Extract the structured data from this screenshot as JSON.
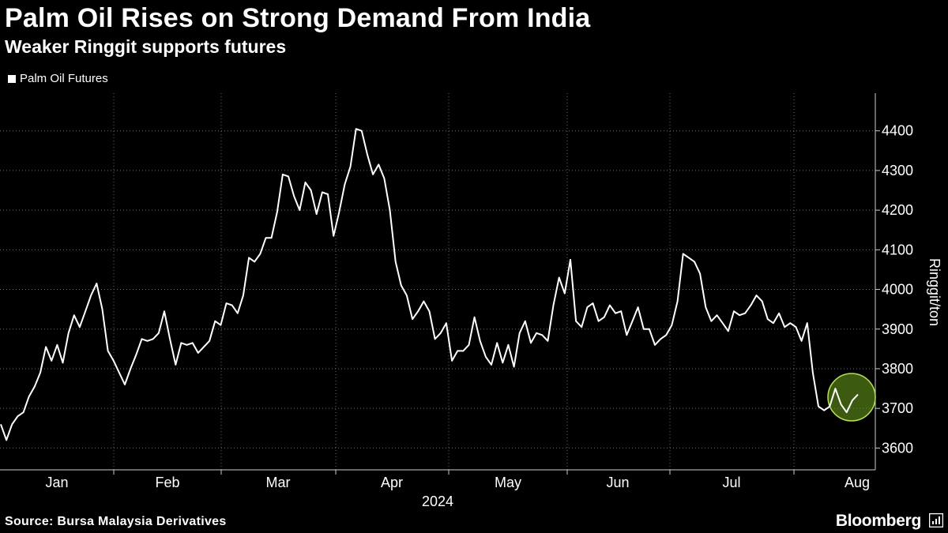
{
  "header": {
    "title": "Palm Oil Rises on Strong Demand From India",
    "subtitle": "Weaker Ringgit supports futures"
  },
  "legend": {
    "label": "Palm Oil Futures",
    "color": "#ffffff"
  },
  "footer": {
    "source": "Source: Bursa Malaysia Derivatives",
    "brand": "Bloomberg"
  },
  "colors": {
    "background": "#000000",
    "line": "#ffffff",
    "grid": "#6b6b6b",
    "highlight": "#6fa51d"
  },
  "chart_data": {
    "type": "line",
    "title": "Palm Oil Rises on Strong Demand From India",
    "subtitle": "Weaker Ringgit supports futures",
    "xlabel": "2024",
    "ylabel": "Ringgit/ton",
    "ylim": [
      3545,
      4495
    ],
    "yticks": [
      3600,
      3700,
      3800,
      3900,
      4000,
      4100,
      4200,
      4300,
      4400
    ],
    "xticks": [
      "Jan",
      "Feb",
      "Mar",
      "Apr",
      "May",
      "Jun",
      "Jul",
      "Aug"
    ],
    "year_label": "2024",
    "grid": true,
    "legend_position": "top-left",
    "highlight_annotation": "circle around latest values (early Aug)",
    "series": [
      {
        "name": "Palm Oil Futures",
        "values": [
          3660,
          3620,
          3660,
          3680,
          3690,
          3730,
          3755,
          3790,
          3855,
          3820,
          3860,
          3815,
          3890,
          3935,
          3905,
          3945,
          3985,
          4015,
          3950,
          3845,
          3820,
          3790,
          3760,
          3800,
          3835,
          3875,
          3870,
          3875,
          3890,
          3945,
          3875,
          3810,
          3865,
          3860,
          3865,
          3840,
          3855,
          3870,
          3920,
          3910,
          3965,
          3960,
          3940,
          3985,
          4080,
          4070,
          4090,
          4130,
          4130,
          4195,
          4290,
          4285,
          4235,
          4200,
          4270,
          4250,
          4190,
          4245,
          4240,
          4135,
          4195,
          4265,
          4310,
          4405,
          4400,
          4340,
          4290,
          4315,
          4280,
          4200,
          4070,
          4010,
          3985,
          3925,
          3945,
          3970,
          3945,
          3875,
          3890,
          3915,
          3820,
          3845,
          3845,
          3860,
          3930,
          3870,
          3830,
          3810,
          3865,
          3815,
          3860,
          3805,
          3890,
          3920,
          3865,
          3890,
          3885,
          3870,
          3960,
          4030,
          3990,
          4075,
          3920,
          3905,
          3955,
          3965,
          3920,
          3930,
          3960,
          3940,
          3945,
          3885,
          3920,
          3955,
          3900,
          3900,
          3860,
          3875,
          3885,
          3910,
          3970,
          4090,
          4080,
          4070,
          4040,
          3955,
          3920,
          3935,
          3915,
          3895,
          3945,
          3935,
          3940,
          3960,
          3985,
          3970,
          3925,
          3915,
          3940,
          3905,
          3915,
          3905,
          3870,
          3915,
          3790,
          3705,
          3695,
          3705,
          3750,
          3710,
          3690,
          3720,
          3735
        ]
      }
    ]
  }
}
